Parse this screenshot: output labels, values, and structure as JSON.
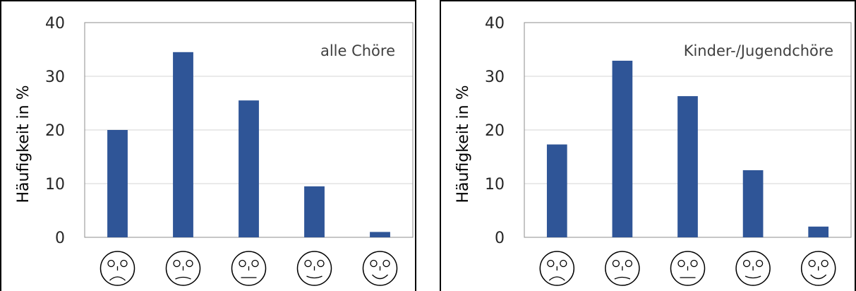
{
  "chart_data": [
    {
      "type": "bar",
      "annotation": "alle Chöre",
      "ylabel": "Häufigkeit in %",
      "xlabel": "",
      "ylim": [
        0,
        40
      ],
      "yticks": [
        "0",
        "10",
        "20",
        "30",
        "40"
      ],
      "categories": [
        "very-sad-face",
        "sad-face",
        "neutral-face",
        "happy-face",
        "very-happy-face"
      ],
      "values": [
        20,
        34.5,
        25.5,
        9.5,
        1
      ],
      "grid": true,
      "bar_color": "#2f5597"
    },
    {
      "type": "bar",
      "annotation": "Kinder-/Jugendchöre",
      "ylabel": "Häufigkeit in %",
      "xlabel": "",
      "ylim": [
        0,
        40
      ],
      "yticks": [
        "0",
        "10",
        "20",
        "30",
        "40"
      ],
      "categories": [
        "very-sad-face",
        "sad-face",
        "neutral-face",
        "happy-face",
        "very-happy-face"
      ],
      "values": [
        17.3,
        32.9,
        26.3,
        12.5,
        2
      ],
      "grid": true,
      "bar_color": "#2f5597"
    }
  ]
}
